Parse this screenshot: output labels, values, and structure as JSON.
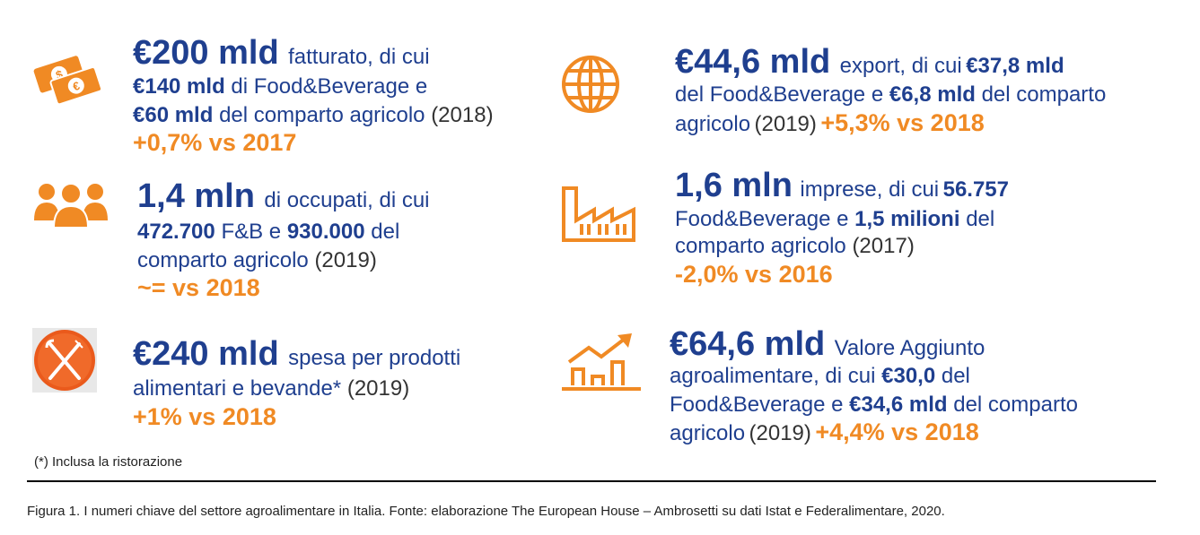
{
  "stats": {
    "fatturato": {
      "value": "€200 mld",
      "desc": "fatturato, di cui",
      "fb_value": "€140 mld",
      "fb_text": "di Food&Beverage e",
      "agri_value": "€60 mld",
      "agri_text": "del comparto agricolo",
      "year": "(2018)",
      "change": "+0,7% vs 2017"
    },
    "occupati": {
      "value": "1,4 mln",
      "desc": "di occupati, di cui",
      "fb_value": "472.700",
      "fb_text": "F&B e",
      "agri_value": "930.000",
      "agri_text": "del",
      "agri_text2": "comparto agricolo",
      "year": "(2019)",
      "change": "~= vs 2018"
    },
    "spesa": {
      "value": "€240 mld",
      "desc": "spesa per prodotti",
      "desc2": "alimentari e bevande*",
      "year": "(2019)",
      "change": "+1% vs 2018"
    },
    "export": {
      "value": "€44,6 mld",
      "desc": "export, di cui",
      "fb_value": "€37,8 mld",
      "fb_text": "del Food&Beverage e",
      "agri_value": "€6,8 mld",
      "agri_text": "del comparto",
      "agri_text2": "agricolo",
      "year": "(2019)",
      "change": "+5,3% vs 2018"
    },
    "imprese": {
      "value": "1,6 mln",
      "desc": "imprese, di cui",
      "fb_value": "56.757",
      "fb_text": "Food&Beverage e",
      "agri_value": "1,5 milioni",
      "agri_text": "del",
      "agri_text2": "comparto agricolo",
      "year": "(2017)",
      "change": "-2,0% vs 2016"
    },
    "valore": {
      "value": "€64,6 mld",
      "desc": "Valore Aggiunto",
      "desc2": "agroalimentare, di cui",
      "fb_value": "€30,0",
      "fb_text": "del",
      "fb_text2": "Food&Beverage e",
      "agri_value": "€34,6 mld",
      "agri_text": "del comparto",
      "agri_text2": "agricolo",
      "year": "(2019)",
      "change": "+4,4% vs 2018"
    }
  },
  "icons": {
    "money": "money-icon",
    "people": "people-icon",
    "food": "fork-knife-icon",
    "globe": "globe-icon",
    "factory": "factory-icon",
    "growth": "growth-chart-icon",
    "accent_color": "#f08a24",
    "text_color": "#1f3f8f"
  },
  "footnote": "(*) Inclusa la ristorazione",
  "caption": "Figura 1. I numeri chiave del settore agroalimentare in Italia. Fonte: elaborazione The European House – Ambrosetti su dati Istat e Federalimentare, 2020."
}
